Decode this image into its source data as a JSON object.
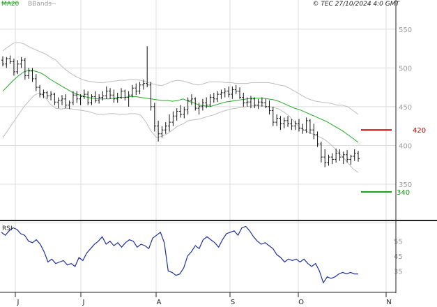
{
  "header": {
    "legend_ma": "MA20",
    "legend_bb": "BBands",
    "copyright": "© TEC 27/10/2024 4:0 GMT"
  },
  "colors": {
    "ma": "#22aa22",
    "bands": "#bdbdbd",
    "price": "#111111",
    "resistance": "#cc0000",
    "support": "#119911",
    "rsi": "#1f2f99",
    "grid": "#dcdcdc"
  },
  "chart_data": [
    {
      "type": "line",
      "panel": "price",
      "title": "",
      "x_labels": [
        "J",
        "J",
        "A",
        "S",
        "O",
        "N"
      ],
      "y_ticks": [
        350,
        400,
        450,
        500,
        550
      ],
      "ylim": [
        305,
        575
      ],
      "grid": true,
      "series": [
        {
          "name": "MA20",
          "kind": "ma",
          "values": [
            470,
            477,
            484,
            490,
            495,
            497,
            496,
            494,
            490,
            485,
            481,
            477,
            473,
            469,
            466,
            464,
            462,
            461,
            460,
            460,
            460,
            461,
            462,
            462,
            463,
            463,
            462,
            461,
            460,
            459,
            458,
            458,
            457,
            458,
            460,
            457,
            455,
            452,
            451,
            450,
            452,
            454,
            456,
            457,
            458,
            459,
            460,
            461,
            461,
            461,
            460,
            459,
            457,
            454,
            451,
            448,
            446,
            443,
            440,
            437,
            434,
            431,
            427,
            423,
            419,
            414,
            409,
            404
          ]
        },
        {
          "name": "BBands",
          "kind": "upper",
          "values": [
            522,
            527,
            532,
            533,
            531,
            527,
            524,
            521,
            518,
            514,
            510,
            503,
            497,
            492,
            488,
            485,
            483,
            482,
            481,
            481,
            482,
            483,
            484,
            484,
            485,
            485,
            484,
            482,
            480,
            478,
            477,
            480,
            483,
            484,
            483,
            481,
            479,
            478,
            480,
            482,
            482,
            482,
            481,
            481,
            480,
            480,
            480,
            481,
            481,
            481,
            481,
            480,
            478,
            477,
            474,
            470,
            466,
            462,
            459,
            457,
            456,
            455,
            454,
            452,
            452,
            450,
            445,
            440
          ]
        },
        {
          "name": "BBands",
          "kind": "lower",
          "values": [
            410,
            420,
            430,
            440,
            450,
            458,
            465,
            468,
            462,
            453,
            448,
            447,
            448,
            447,
            446,
            445,
            444,
            442,
            440,
            440,
            441,
            441,
            440,
            440,
            441,
            441,
            439,
            430,
            418,
            410,
            412,
            415,
            420,
            425,
            428,
            432,
            433,
            434,
            436,
            438,
            440,
            443,
            445,
            447,
            448,
            449,
            450,
            451,
            451,
            451,
            450,
            449,
            447,
            443,
            438,
            430,
            423,
            419,
            416,
            413,
            410,
            406,
            400,
            393,
            386,
            378,
            370,
            365
          ]
        }
      ],
      "candles": [
        {
          "o": 510,
          "h": 515,
          "l": 502,
          "c": 505
        },
        {
          "o": 505,
          "h": 514,
          "l": 500,
          "c": 512
        },
        {
          "o": 512,
          "h": 516,
          "l": 505,
          "c": 508
        },
        {
          "o": 508,
          "h": 512,
          "l": 490,
          "c": 495
        },
        {
          "o": 495,
          "h": 510,
          "l": 492,
          "c": 505
        },
        {
          "o": 505,
          "h": 514,
          "l": 500,
          "c": 510
        },
        {
          "o": 510,
          "h": 513,
          "l": 485,
          "c": 490
        },
        {
          "o": 490,
          "h": 500,
          "l": 486,
          "c": 496
        },
        {
          "o": 496,
          "h": 500,
          "l": 482,
          "c": 486
        },
        {
          "o": 486,
          "h": 492,
          "l": 470,
          "c": 475
        },
        {
          "o": 475,
          "h": 478,
          "l": 462,
          "c": 466
        },
        {
          "o": 466,
          "h": 472,
          "l": 461,
          "c": 468
        },
        {
          "o": 468,
          "h": 470,
          "l": 460,
          "c": 464
        },
        {
          "o": 464,
          "h": 470,
          "l": 458,
          "c": 466
        },
        {
          "o": 466,
          "h": 468,
          "l": 452,
          "c": 456
        },
        {
          "o": 456,
          "h": 462,
          "l": 448,
          "c": 458
        },
        {
          "o": 458,
          "h": 465,
          "l": 452,
          "c": 460
        },
        {
          "o": 460,
          "h": 466,
          "l": 448,
          "c": 452
        },
        {
          "o": 452,
          "h": 458,
          "l": 447,
          "c": 455
        },
        {
          "o": 455,
          "h": 470,
          "l": 452,
          "c": 465
        },
        {
          "o": 465,
          "h": 470,
          "l": 455,
          "c": 460
        },
        {
          "o": 460,
          "h": 466,
          "l": 452,
          "c": 463
        },
        {
          "o": 463,
          "h": 472,
          "l": 460,
          "c": 466
        },
        {
          "o": 466,
          "h": 470,
          "l": 452,
          "c": 455
        },
        {
          "o": 455,
          "h": 466,
          "l": 452,
          "c": 463
        },
        {
          "o": 463,
          "h": 470,
          "l": 455,
          "c": 458
        },
        {
          "o": 458,
          "h": 466,
          "l": 454,
          "c": 462
        },
        {
          "o": 462,
          "h": 470,
          "l": 458,
          "c": 464
        },
        {
          "o": 464,
          "h": 476,
          "l": 460,
          "c": 470
        },
        {
          "o": 470,
          "h": 474,
          "l": 460,
          "c": 465
        },
        {
          "o": 465,
          "h": 472,
          "l": 455,
          "c": 460
        },
        {
          "o": 460,
          "h": 468,
          "l": 455,
          "c": 462
        },
        {
          "o": 462,
          "h": 474,
          "l": 460,
          "c": 470
        },
        {
          "o": 470,
          "h": 472,
          "l": 458,
          "c": 462
        },
        {
          "o": 462,
          "h": 470,
          "l": 450,
          "c": 465
        },
        {
          "o": 465,
          "h": 478,
          "l": 462,
          "c": 474
        },
        {
          "o": 474,
          "h": 480,
          "l": 465,
          "c": 470
        },
        {
          "o": 470,
          "h": 482,
          "l": 466,
          "c": 478
        },
        {
          "o": 478,
          "h": 485,
          "l": 472,
          "c": 480
        },
        {
          "o": 480,
          "h": 528,
          "l": 475,
          "c": 478
        },
        {
          "o": 478,
          "h": 482,
          "l": 445,
          "c": 450
        },
        {
          "o": 450,
          "h": 455,
          "l": 418,
          "c": 425
        },
        {
          "o": 425,
          "h": 432,
          "l": 405,
          "c": 415
        },
        {
          "o": 415,
          "h": 425,
          "l": 410,
          "c": 420
        },
        {
          "o": 420,
          "h": 430,
          "l": 415,
          "c": 425
        },
        {
          "o": 425,
          "h": 440,
          "l": 418,
          "c": 430
        },
        {
          "o": 430,
          "h": 444,
          "l": 425,
          "c": 438
        },
        {
          "o": 438,
          "h": 448,
          "l": 432,
          "c": 444
        },
        {
          "o": 444,
          "h": 452,
          "l": 436,
          "c": 440
        },
        {
          "o": 440,
          "h": 450,
          "l": 435,
          "c": 446
        },
        {
          "o": 446,
          "h": 462,
          "l": 440,
          "c": 458
        },
        {
          "o": 458,
          "h": 466,
          "l": 452,
          "c": 460
        },
        {
          "o": 460,
          "h": 462,
          "l": 445,
          "c": 448
        },
        {
          "o": 448,
          "h": 455,
          "l": 440,
          "c": 450
        },
        {
          "o": 450,
          "h": 460,
          "l": 445,
          "c": 455
        },
        {
          "o": 455,
          "h": 462,
          "l": 448,
          "c": 452
        },
        {
          "o": 452,
          "h": 466,
          "l": 450,
          "c": 462
        },
        {
          "o": 462,
          "h": 468,
          "l": 455,
          "c": 460
        },
        {
          "o": 460,
          "h": 470,
          "l": 456,
          "c": 466
        },
        {
          "o": 466,
          "h": 472,
          "l": 460,
          "c": 468
        },
        {
          "o": 468,
          "h": 474,
          "l": 462,
          "c": 470
        },
        {
          "o": 470,
          "h": 476,
          "l": 462,
          "c": 466
        },
        {
          "o": 466,
          "h": 476,
          "l": 460,
          "c": 472
        },
        {
          "o": 472,
          "h": 478,
          "l": 466,
          "c": 470
        },
        {
          "o": 470,
          "h": 475,
          "l": 460,
          "c": 462
        },
        {
          "o": 462,
          "h": 468,
          "l": 450,
          "c": 455
        },
        {
          "o": 455,
          "h": 462,
          "l": 450,
          "c": 456
        },
        {
          "o": 456,
          "h": 464,
          "l": 448,
          "c": 460
        },
        {
          "o": 460,
          "h": 462,
          "l": 448,
          "c": 452
        },
        {
          "o": 452,
          "h": 460,
          "l": 447,
          "c": 456
        },
        {
          "o": 456,
          "h": 462,
          "l": 450,
          "c": 455
        },
        {
          "o": 455,
          "h": 460,
          "l": 448,
          "c": 450
        },
        {
          "o": 450,
          "h": 458,
          "l": 440,
          "c": 445
        },
        {
          "o": 445,
          "h": 450,
          "l": 425,
          "c": 430
        },
        {
          "o": 430,
          "h": 440,
          "l": 425,
          "c": 435
        },
        {
          "o": 435,
          "h": 438,
          "l": 420,
          "c": 428
        },
        {
          "o": 428,
          "h": 436,
          "l": 422,
          "c": 432
        },
        {
          "o": 432,
          "h": 438,
          "l": 424,
          "c": 428
        },
        {
          "o": 428,
          "h": 434,
          "l": 420,
          "c": 425
        },
        {
          "o": 425,
          "h": 432,
          "l": 420,
          "c": 428
        },
        {
          "o": 428,
          "h": 434,
          "l": 418,
          "c": 422
        },
        {
          "o": 422,
          "h": 428,
          "l": 415,
          "c": 420
        },
        {
          "o": 420,
          "h": 436,
          "l": 416,
          "c": 432
        },
        {
          "o": 432,
          "h": 434,
          "l": 415,
          "c": 420
        },
        {
          "o": 420,
          "h": 428,
          "l": 408,
          "c": 414
        },
        {
          "o": 414,
          "h": 418,
          "l": 398,
          "c": 402
        },
        {
          "o": 402,
          "h": 405,
          "l": 378,
          "c": 385
        },
        {
          "o": 385,
          "h": 395,
          "l": 372,
          "c": 378
        },
        {
          "o": 378,
          "h": 388,
          "l": 374,
          "c": 385
        },
        {
          "o": 385,
          "h": 390,
          "l": 376,
          "c": 382
        },
        {
          "o": 382,
          "h": 396,
          "l": 378,
          "c": 390
        },
        {
          "o": 390,
          "h": 395,
          "l": 380,
          "c": 385
        },
        {
          "o": 385,
          "h": 392,
          "l": 376,
          "c": 388
        },
        {
          "o": 388,
          "h": 394,
          "l": 378,
          "c": 382
        },
        {
          "o": 382,
          "h": 388,
          "l": 375,
          "c": 386
        },
        {
          "o": 386,
          "h": 395,
          "l": 380,
          "c": 390
        },
        {
          "o": 390,
          "h": 393,
          "l": 379,
          "c": 383
        }
      ],
      "levels": [
        {
          "label": "420",
          "value": 420,
          "kind": "resistance"
        },
        {
          "label": "340",
          "value": 340,
          "kind": "support"
        }
      ]
    },
    {
      "type": "line",
      "panel": "rsi",
      "title": "RSI",
      "y_ticks": [
        35,
        45,
        55
      ],
      "ylim": [
        22,
        68
      ],
      "series": [
        {
          "name": "RSI",
          "values": [
            61,
            59,
            62,
            64,
            63,
            60,
            59,
            55,
            54,
            56,
            53,
            48,
            41,
            43,
            40,
            41,
            42,
            39,
            40,
            38,
            44,
            42,
            47,
            50,
            53,
            55,
            58,
            53,
            55,
            52,
            54,
            51,
            54,
            56,
            55,
            51,
            53,
            52,
            50,
            57,
            59,
            61,
            54,
            35,
            34,
            32,
            33,
            37,
            45,
            48,
            52,
            50,
            56,
            58,
            56,
            54,
            51,
            56,
            60,
            61,
            62,
            59,
            64,
            65,
            62,
            58,
            55,
            53,
            54,
            52,
            50,
            46,
            44,
            41,
            43,
            42,
            43,
            41,
            43,
            40,
            38,
            40,
            35,
            27,
            31,
            30,
            31,
            33,
            34,
            33,
            34,
            33,
            33
          ]
        }
      ]
    }
  ]
}
